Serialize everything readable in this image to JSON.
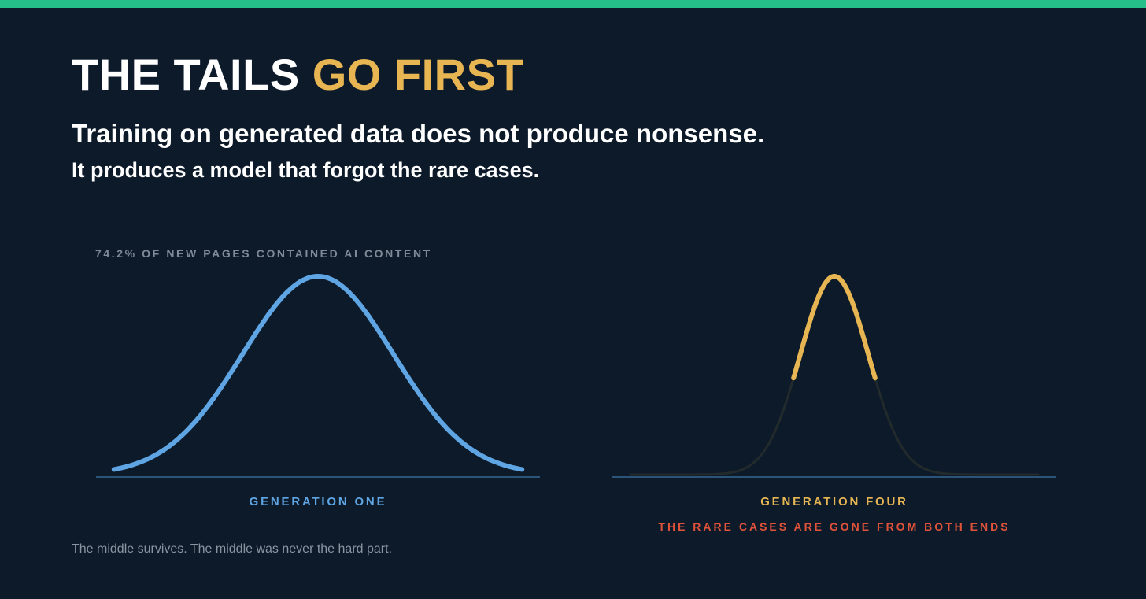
{
  "title": {
    "main": "THE TAILS ",
    "accent": "GO FIRST"
  },
  "subtitle": {
    "line1": "Training on generated data does not produce nonsense.",
    "line2": "It produces a model that forgot the rare cases."
  },
  "stat_label": "74.2% OF NEW PAGES CONTAINED AI CONTENT",
  "panels": [
    {
      "label": "GENERATION ONE",
      "curve_color": "#5fa5e3",
      "spread": 1.0,
      "visible_range_sd": [
        -2.7,
        2.7
      ]
    },
    {
      "label": "GENERATION FOUR",
      "curve_color": "#e7b653",
      "tail_color": "#222a2c",
      "spread": 0.45,
      "visible_range_sd": [
        -1.2,
        1.2
      ],
      "note": "THE RARE CASES ARE GONE FROM BOTH ENDS"
    }
  ],
  "footnote": "The middle survives. The middle was never the hard part.",
  "colors": {
    "background": "#0c1a2a",
    "top_bar": "#25c08a",
    "accent": "#e7b653",
    "baseline": "#2c5478",
    "warning": "#e0533a"
  }
}
